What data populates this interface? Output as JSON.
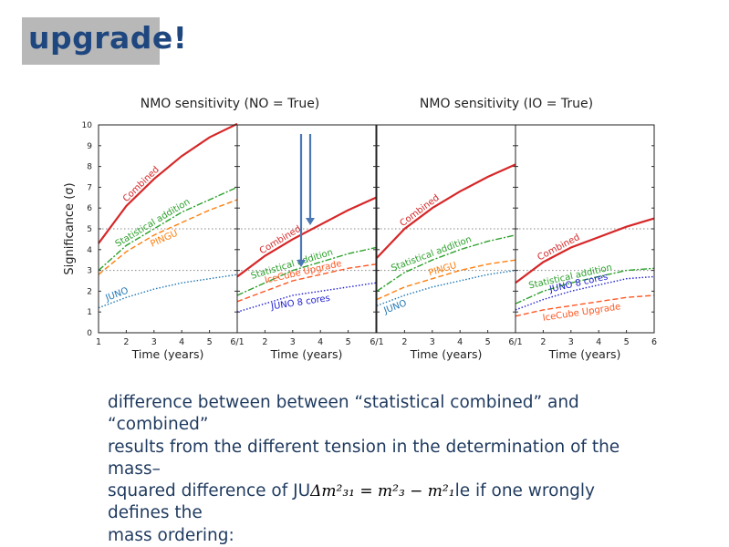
{
  "slide": {
    "title": "upgrade!"
  },
  "body_text": {
    "line1": "difference between between “statistical combined” and",
    "line2": "“combined”",
    "line3": "results from the different tension in the determination of the",
    "line4": "mass–",
    "line5a": "squared difference of JU",
    "math": "Δm²₃₁ = m²₃ − m²₁",
    "line5b": "le if one wrongly",
    "line6": "defines the",
    "line7": "mass ordering:"
  },
  "colors": {
    "combined": "#d62728",
    "stat": "#2ca02c",
    "pingu": "#ff7f0e",
    "icecube": "#ff5722",
    "juno": "#1f77b4",
    "juno8": "#2020d0",
    "arrow": "#4a78b5"
  },
  "chart_data": {
    "type": "line",
    "ylabel": "Significance (σ)",
    "xlabel": "Time (years)",
    "ylim": [
      0,
      10
    ],
    "xlim": [
      1,
      6
    ],
    "x": [
      1,
      2,
      3,
      4,
      5,
      6
    ],
    "xticks": [
      "1",
      "2",
      "3",
      "4",
      "5",
      "6/1",
      "2",
      "3",
      "4",
      "5",
      "6/1",
      "2",
      "3",
      "4",
      "5",
      "6/1",
      "2",
      "3",
      "4",
      "5",
      "6"
    ],
    "yticks": [
      "0",
      "1",
      "2",
      "3",
      "4",
      "5",
      "6",
      "7",
      "8",
      "9",
      "10"
    ],
    "reference_lines": [
      3,
      5
    ],
    "group_titles": [
      "NMO sensitivity (NO = True)",
      "NMO sensitivity (IO = True)"
    ],
    "panels": [
      {
        "series": [
          {
            "name": "Combined",
            "color": "combined",
            "style": "solid",
            "values": [
              4.3,
              6.1,
              7.4,
              8.5,
              9.4,
              10.2
            ]
          },
          {
            "name": "Statistical addition",
            "color": "stat",
            "style": "dashdot",
            "values": [
              3.0,
              4.2,
              5.0,
              5.8,
              6.4,
              7.0
            ]
          },
          {
            "name": "PINGU",
            "color": "pingu",
            "style": "dashed",
            "values": [
              2.8,
              3.9,
              4.7,
              5.3,
              5.9,
              6.4
            ]
          },
          {
            "name": "JUNO",
            "color": "juno",
            "style": "dotted",
            "values": [
              1.2,
              1.7,
              2.1,
              2.4,
              2.6,
              2.8
            ]
          }
        ]
      },
      {
        "series": [
          {
            "name": "Combined",
            "color": "combined",
            "style": "solid",
            "values": [
              2.7,
              3.7,
              4.5,
              5.2,
              5.9,
              6.5
            ]
          },
          {
            "name": "Statistical addition",
            "color": "stat",
            "style": "dashdot",
            "values": [
              1.8,
              2.4,
              3.0,
              3.4,
              3.8,
              4.1
            ]
          },
          {
            "name": "IceCube Upgrade",
            "color": "icecube",
            "style": "dashed",
            "values": [
              1.5,
              2.0,
              2.5,
              2.8,
              3.1,
              3.3
            ]
          },
          {
            "name": "JUNO 8 cores",
            "color": "juno8",
            "style": "dotted",
            "values": [
              1.0,
              1.4,
              1.8,
              2.0,
              2.2,
              2.4
            ]
          }
        ]
      },
      {
        "series": [
          {
            "name": "Combined",
            "color": "combined",
            "style": "solid",
            "values": [
              3.6,
              5.0,
              6.0,
              6.8,
              7.5,
              8.1
            ]
          },
          {
            "name": "Statistical addition",
            "color": "stat",
            "style": "dashdot",
            "values": [
              2.0,
              2.9,
              3.5,
              4.0,
              4.4,
              4.7
            ]
          },
          {
            "name": "PINGU",
            "color": "pingu",
            "style": "dashed",
            "values": [
              1.6,
              2.2,
              2.6,
              3.0,
              3.3,
              3.5
            ]
          },
          {
            "name": "JUNO",
            "color": "juno",
            "style": "dotted",
            "values": [
              1.3,
              1.8,
              2.2,
              2.5,
              2.8,
              3.0
            ]
          }
        ]
      },
      {
        "series": [
          {
            "name": "Combined",
            "color": "combined",
            "style": "solid",
            "values": [
              2.4,
              3.4,
              4.1,
              4.6,
              5.1,
              5.5
            ]
          },
          {
            "name": "Statistical addition",
            "color": "stat",
            "style": "dashdot",
            "values": [
              1.4,
              2.0,
              2.4,
              2.7,
              3.0,
              3.1
            ]
          },
          {
            "name": "JUNO 8 cores",
            "color": "juno8",
            "style": "dotted",
            "values": [
              1.1,
              1.6,
              2.0,
              2.3,
              2.6,
              2.7
            ]
          },
          {
            "name": "IceCube Upgrade",
            "color": "icecube",
            "style": "dashed",
            "values": [
              0.8,
              1.1,
              1.3,
              1.5,
              1.7,
              1.8
            ]
          }
        ]
      }
    ]
  }
}
